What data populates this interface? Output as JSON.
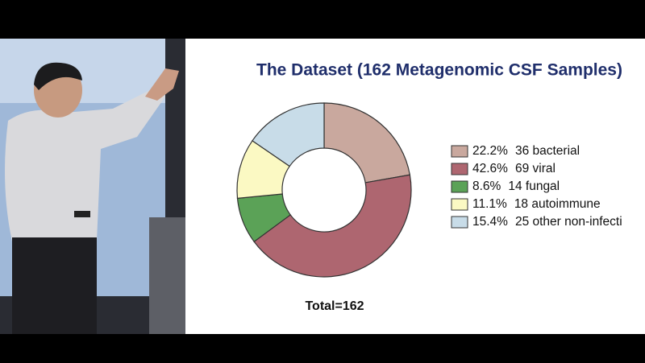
{
  "chart_data": {
    "type": "donut",
    "title": "The Dataset (162 Metagenomic CSF Samples)",
    "annotation": "Total=162",
    "categories": [
      "36 bacterial",
      "69 viral",
      "14 fungal",
      "18 autoimmune",
      "25 other non-infecti"
    ],
    "values": [
      22.2,
      42.6,
      8.6,
      11.1,
      15.4
    ],
    "value_labels": [
      "22.2%",
      "42.6%",
      "8.6%",
      "11.1%",
      "15.4%"
    ],
    "colors": [
      "#c9a89e",
      "#ae6670",
      "#5ba257",
      "#fbf9c3",
      "#c8dce8"
    ]
  }
}
